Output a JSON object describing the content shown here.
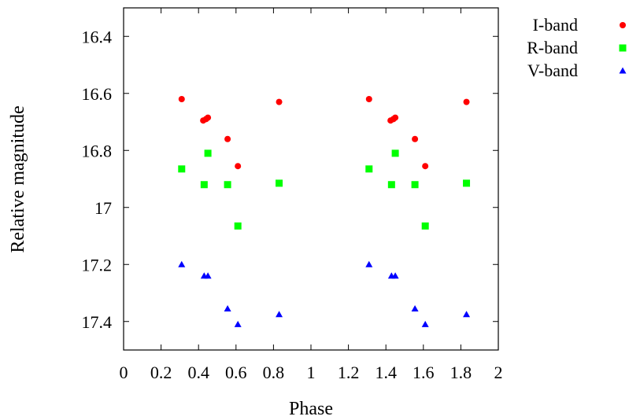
{
  "chart_data": {
    "type": "scatter",
    "xlabel": "Phase",
    "ylabel": "Relative magnitude",
    "xlim": [
      0,
      2
    ],
    "ylim": [
      16.3,
      17.5
    ],
    "y_inverted": true,
    "grid": false,
    "legend_position": "outside-right",
    "x_ticks": [
      "0",
      "0.2",
      "0.4",
      "0.6",
      "0.8",
      "1",
      "1.2",
      "1.4",
      "1.6",
      "1.8",
      "2"
    ],
    "y_ticks": [
      "16.4",
      "16.6",
      "16.8",
      "17",
      "17.2",
      "17.4"
    ],
    "series": [
      {
        "name": "I-band",
        "marker": "circle",
        "color": "#ff0000",
        "points": [
          [
            0.31,
            16.62
          ],
          [
            0.425,
            16.695
          ],
          [
            0.44,
            16.69
          ],
          [
            0.45,
            16.685
          ],
          [
            0.555,
            16.76
          ],
          [
            0.61,
            16.855
          ],
          [
            0.83,
            16.63
          ],
          [
            1.31,
            16.62
          ],
          [
            1.425,
            16.695
          ],
          [
            1.44,
            16.69
          ],
          [
            1.45,
            16.685
          ],
          [
            1.555,
            16.76
          ],
          [
            1.61,
            16.855
          ],
          [
            1.83,
            16.63
          ]
        ]
      },
      {
        "name": "R-band",
        "marker": "square",
        "color": "#00ff00",
        "points": [
          [
            0.31,
            16.865
          ],
          [
            0.43,
            16.92
          ],
          [
            0.45,
            16.81
          ],
          [
            0.555,
            16.92
          ],
          [
            0.61,
            17.065
          ],
          [
            0.83,
            16.915
          ],
          [
            1.31,
            16.865
          ],
          [
            1.43,
            16.92
          ],
          [
            1.45,
            16.81
          ],
          [
            1.555,
            16.92
          ],
          [
            1.61,
            17.065
          ],
          [
            1.83,
            16.915
          ]
        ]
      },
      {
        "name": "V-band",
        "marker": "triangle",
        "color": "#0000ff",
        "points": [
          [
            0.31,
            17.2
          ],
          [
            0.43,
            17.24
          ],
          [
            0.45,
            17.24
          ],
          [
            0.555,
            17.355
          ],
          [
            0.61,
            17.41
          ],
          [
            0.83,
            17.375
          ],
          [
            1.31,
            17.2
          ],
          [
            1.43,
            17.24
          ],
          [
            1.45,
            17.24
          ],
          [
            1.555,
            17.355
          ],
          [
            1.61,
            17.41
          ],
          [
            1.83,
            17.375
          ]
        ]
      }
    ]
  }
}
